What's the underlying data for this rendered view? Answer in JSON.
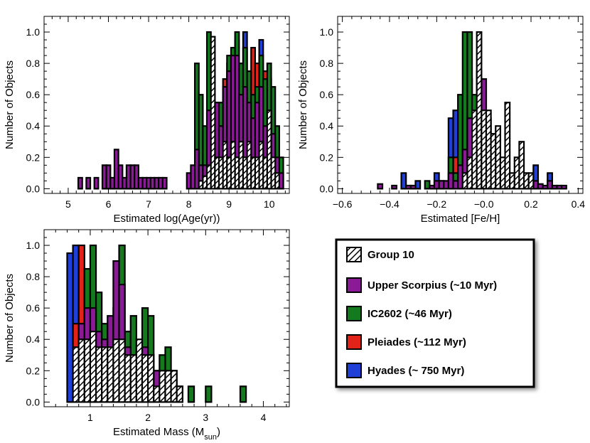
{
  "legend": {
    "entries": [
      {
        "label": "Group 10",
        "color": "#ffffff",
        "hatch": true
      },
      {
        "label": "Upper Scorpius (~10 Myr)",
        "color": "#8a1a96",
        "hatch": false
      },
      {
        "label": "IC2602 (~46 Myr)",
        "color": "#137a1e",
        "hatch": false
      },
      {
        "label": "Pleiades (~112 Myr)",
        "color": "#e2231a",
        "hatch": false
      },
      {
        "label": "Hyades (~ 750 Myr)",
        "color": "#1f3fd6",
        "hatch": false
      }
    ]
  },
  "chart_data": [
    {
      "type": "bar",
      "title": "",
      "xlabel": "Estimated log(Age(yr))",
      "ylabel": "Number of Objects",
      "xlim": [
        4.4,
        10.5
      ],
      "ylim": [
        -0.03,
        1.1
      ],
      "binwidth": 0.1,
      "xticks": [
        5,
        6,
        7,
        8,
        9,
        10
      ],
      "yticks": [
        0.0,
        0.2,
        0.4,
        0.6,
        0.8,
        1.0
      ],
      "series": [
        {
          "name": "Hyades",
          "color": "#1f3fd6",
          "hatch": false,
          "x": [
            9.0,
            9.4,
            9.8
          ],
          "values": [
            0.8,
            1.0,
            0.95
          ]
        },
        {
          "name": "Pleiades",
          "color": "#e2231a",
          "hatch": false,
          "x": [
            8.9,
            9.2,
            9.6,
            9.7,
            9.9,
            10.0
          ],
          "values": [
            0.7,
            0.95,
            0.9,
            0.8,
            0.75,
            0.7
          ]
        },
        {
          "name": "IC2602",
          "color": "#137a1e",
          "hatch": false,
          "x": [
            8.2,
            8.3,
            8.4,
            8.5,
            8.6,
            8.7,
            8.8,
            8.9,
            9.0,
            9.1,
            9.2,
            9.3,
            9.4,
            9.5,
            9.6,
            9.7,
            9.8,
            9.9,
            10.0,
            10.1,
            10.2,
            10.3
          ],
          "values": [
            0.8,
            0.6,
            0.4,
            1.0,
            0.85,
            0.55,
            0.55,
            0.6,
            0.85,
            0.9,
            1.0,
            0.8,
            0.9,
            0.75,
            0.6,
            0.65,
            0.85,
            0.7,
            0.8,
            0.65,
            0.4,
            0.2
          ]
        },
        {
          "name": "Upper Scorpius",
          "color": "#8a1a96",
          "hatch": false,
          "x": [
            5.3,
            5.5,
            5.7,
            5.9,
            6.0,
            6.1,
            6.2,
            6.3,
            6.4,
            6.5,
            6.6,
            6.7,
            6.8,
            6.9,
            7.0,
            7.1,
            7.2,
            7.3,
            7.4,
            8.0,
            8.1,
            8.2,
            8.3,
            8.4,
            8.5,
            8.6,
            8.7,
            8.8,
            8.9,
            9.0,
            9.1,
            9.2,
            9.3,
            9.4,
            9.5,
            9.6,
            9.7,
            9.8,
            9.9,
            10.0,
            10.1,
            10.2,
            10.3
          ],
          "values": [
            0.07,
            0.07,
            0.07,
            0.15,
            0.15,
            0.07,
            0.25,
            0.15,
            0.07,
            0.15,
            0.15,
            0.15,
            0.07,
            0.07,
            0.07,
            0.07,
            0.07,
            0.07,
            0.07,
            0.1,
            0.15,
            0.25,
            0.15,
            0.15,
            0.5,
            0.75,
            0.55,
            0.4,
            0.65,
            0.75,
            0.85,
            0.85,
            0.6,
            0.65,
            0.55,
            0.45,
            0.55,
            0.65,
            0.4,
            0.5,
            0.35,
            0.2,
            0.1
          ]
        },
        {
          "name": "Group 10",
          "color": "#ffffff",
          "hatch": true,
          "x": [
            8.3,
            8.4,
            8.5,
            8.6,
            8.7,
            8.8,
            8.9,
            9.0,
            9.1,
            9.2,
            9.3,
            9.4,
            9.5,
            9.6,
            9.7,
            9.8,
            9.9,
            10.0,
            10.1,
            10.2
          ],
          "values": [
            0.05,
            0.08,
            0.15,
            0.97,
            0.2,
            0.2,
            0.3,
            0.2,
            0.3,
            0.2,
            0.3,
            0.2,
            0.3,
            0.2,
            0.2,
            0.3,
            0.2,
            0.5,
            0.2,
            0.1
          ]
        }
      ]
    },
    {
      "type": "bar",
      "title": "",
      "xlabel": "Estimated [Fe/H]",
      "ylabel": "Number of Objects",
      "xlim": [
        -0.62,
        0.42
      ],
      "ylim": [
        -0.03,
        1.1
      ],
      "binwidth": 0.02,
      "xticks": [
        -0.6,
        -0.4,
        -0.2,
        -0.0,
        0.2,
        0.4
      ],
      "xtick_labels": [
        "−0.6",
        "−0.4",
        "−0.2",
        "−0.0",
        "0.2",
        "0.4"
      ],
      "yticks": [
        0.0,
        0.2,
        0.4,
        0.6,
        0.8,
        1.0
      ],
      "series": [
        {
          "name": "Hyades",
          "color": "#1f3fd6",
          "hatch": false,
          "x": [
            -0.34,
            -0.28,
            -0.2,
            -0.14,
            -0.12,
            0.22,
            0.28
          ],
          "values": [
            0.1,
            0.05,
            0.1,
            0.45,
            0.5,
            0.15,
            0.1
          ]
        },
        {
          "name": "Pleiades",
          "color": "#e2231a",
          "hatch": false,
          "x": [
            -0.12,
            -0.06,
            -0.02,
            0.06
          ],
          "values": [
            0.2,
            0.7,
            0.3,
            0.2
          ]
        },
        {
          "name": "IC2602",
          "color": "#137a1e",
          "hatch": false,
          "x": [
            -0.24,
            -0.18,
            -0.14,
            -0.12,
            -0.1,
            -0.08,
            -0.06,
            -0.04,
            -0.02,
            0.0,
            0.02,
            0.04,
            0.06
          ],
          "values": [
            0.05,
            0.05,
            0.2,
            0.1,
            0.6,
            1.0,
            1.0,
            0.6,
            0.75,
            0.5,
            0.45,
            0.3,
            0.05
          ]
        },
        {
          "name": "Upper Scorpius",
          "color": "#8a1a96",
          "hatch": false,
          "x": [
            -0.44,
            -0.38,
            -0.32,
            -0.3,
            -0.22,
            -0.2,
            -0.18,
            -0.16,
            -0.14,
            -0.12,
            -0.1,
            -0.08,
            -0.06,
            -0.04,
            -0.02,
            0.0,
            0.02,
            0.04,
            0.06,
            0.08,
            0.1,
            0.12,
            0.14,
            0.16,
            0.18,
            0.2,
            0.22,
            0.24,
            0.26,
            0.28,
            0.3,
            0.32,
            0.34
          ],
          "values": [
            0.03,
            0.02,
            0.02,
            0.02,
            0.02,
            0.05,
            0.05,
            0.05,
            0.1,
            0.05,
            0.15,
            0.25,
            0.45,
            0.45,
            0.25,
            0.7,
            0.35,
            0.35,
            0.3,
            0.15,
            0.1,
            0.05,
            0.05,
            0.05,
            0.05,
            0.05,
            0.05,
            0.03,
            0.02,
            0.05,
            0.02,
            0.02,
            0.02
          ]
        },
        {
          "name": "Group 10",
          "color": "#ffffff",
          "hatch": true,
          "x": [
            -0.08,
            -0.06,
            -0.04,
            -0.02,
            0.0,
            0.02,
            0.04,
            0.06,
            0.08,
            0.1,
            0.12,
            0.14,
            0.16,
            0.18,
            0.2
          ],
          "values": [
            0.1,
            0.2,
            0.5,
            1.0,
            0.5,
            0.5,
            0.35,
            0.4,
            0.2,
            0.55,
            0.1,
            0.2,
            0.3,
            0.1,
            0.1
          ]
        }
      ]
    },
    {
      "type": "bar",
      "title": "",
      "xlabel": "Estimated Mass (M",
      "xlabel_sub": "sun",
      "xlabel_end": ")",
      "ylabel": "Number of Objects",
      "xlim": [
        0.2,
        4.45
      ],
      "ylim": [
        -0.03,
        1.1
      ],
      "binwidth": 0.1,
      "xticks": [
        1,
        2,
        3,
        4
      ],
      "yticks": [
        0.0,
        0.2,
        0.4,
        0.6,
        0.8,
        1.0
      ],
      "series": [
        {
          "name": "Hyades",
          "color": "#1f3fd6",
          "hatch": false,
          "x": [
            0.65,
            0.75,
            0.85
          ],
          "values": [
            0.95,
            1.0,
            0.55
          ]
        },
        {
          "name": "Pleiades",
          "color": "#e2231a",
          "hatch": false,
          "x": [
            0.75,
            0.85,
            0.95
          ],
          "values": [
            0.5,
            1.0,
            0.8
          ]
        },
        {
          "name": "IC2602",
          "color": "#137a1e",
          "hatch": false,
          "x": [
            0.95,
            1.05,
            1.15,
            1.25,
            1.45,
            1.55,
            1.65,
            1.75,
            1.85,
            1.95,
            2.05,
            2.15,
            2.25,
            2.35,
            2.45,
            2.55,
            2.75,
            3.05,
            3.65
          ],
          "values": [
            0.85,
            1.0,
            0.7,
            0.5,
            0.6,
            1.0,
            0.45,
            0.55,
            0.3,
            0.6,
            0.55,
            0.2,
            0.3,
            0.35,
            0.2,
            0.1,
            0.1,
            0.1,
            0.1
          ]
        },
        {
          "name": "Upper Scorpius",
          "color": "#8a1a96",
          "hatch": false,
          "x": [
            0.85,
            0.95,
            1.05,
            1.15,
            1.25,
            1.35,
            1.45,
            1.55,
            1.65,
            1.75,
            1.85,
            1.95,
            2.05,
            2.15,
            2.25,
            2.35,
            2.45
          ],
          "values": [
            0.5,
            0.6,
            0.6,
            0.45,
            0.4,
            0.55,
            0.9,
            0.75,
            0.35,
            0.3,
            0.35,
            0.35,
            0.3,
            0.2,
            0.15,
            0.1,
            0.05
          ]
        },
        {
          "name": "Group 10",
          "color": "#ffffff",
          "hatch": true,
          "x": [
            0.75,
            0.85,
            0.95,
            1.05,
            1.15,
            1.25,
            1.35,
            1.45,
            1.55,
            1.65,
            1.75,
            1.85,
            1.95,
            2.05,
            2.15,
            2.25,
            2.35,
            2.45,
            2.55
          ],
          "values": [
            0.35,
            0.4,
            0.4,
            0.45,
            0.35,
            0.35,
            0.35,
            0.4,
            0.4,
            0.3,
            0.3,
            0.4,
            0.3,
            0.3,
            0.1,
            0.2,
            0.2,
            0.2,
            0.1
          ]
        }
      ]
    }
  ]
}
